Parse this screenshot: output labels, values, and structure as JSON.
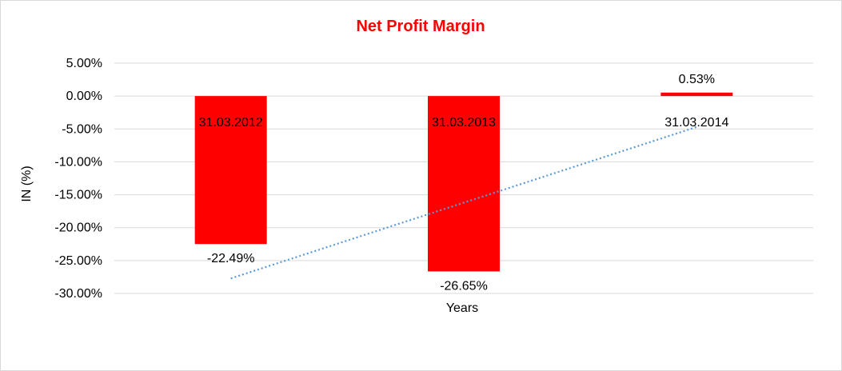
{
  "chart_data": {
    "type": "bar",
    "title": "Net Profit Margin",
    "xlabel": "Years",
    "ylabel": "IN (%)",
    "categories": [
      "31.03.2012",
      "31.03.2013",
      "31.03.2014"
    ],
    "values": [
      -22.49,
      -26.65,
      0.53
    ],
    "data_labels": [
      "-22.49%",
      "-26.65%",
      "0.53%"
    ],
    "ylim": [
      -30,
      5
    ],
    "yticks": [
      5,
      0,
      -5,
      -10,
      -15,
      -20,
      -25,
      -30
    ],
    "ytick_labels": [
      "5.00%",
      "0.00%",
      "-5.00%",
      "-10.00%",
      "-15.00%",
      "-20.00%",
      "-25.00%",
      "-30.00%"
    ],
    "grid": true,
    "trendline": "linear",
    "colors": {
      "bar": "#ff0000",
      "title": "#ff0000",
      "trendline": "#5b9bd5",
      "grid": "#d9d9d9"
    }
  }
}
